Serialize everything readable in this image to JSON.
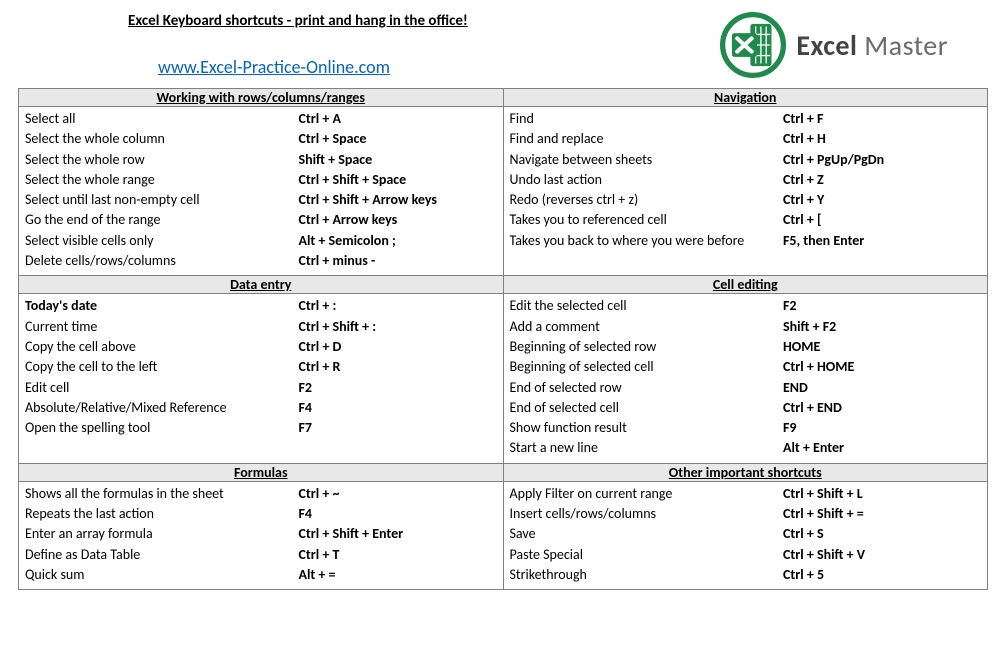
{
  "header": {
    "title": "Excel Keyboard shortcuts - print and hang in the office!",
    "site_link": "www.Excel-Practice-Online.com",
    "logo_text_bold": "Excel",
    "logo_text_light": " Master"
  },
  "colors": {
    "logo_green": "#1f8a4c",
    "link": "#0563c1",
    "header_bg": "#e8e8e8",
    "border": "#808080"
  },
  "sections": {
    "rows_cols": {
      "title": "Working with rows/columns/ranges",
      "items": [
        {
          "desc": "Select all",
          "key": "Ctrl + A"
        },
        {
          "desc": "Select the whole column",
          "key": "Ctrl + Space"
        },
        {
          "desc": "Select the whole row",
          "key": "Shift + Space"
        },
        {
          "desc": "Select the whole range",
          "key": "Ctrl + Shift + Space"
        },
        {
          "desc": "Select until last non-empty cell",
          "key": "Ctrl + Shift + Arrow keys"
        },
        {
          "desc": "Go the end of the range",
          "key": "Ctrl + Arrow keys"
        },
        {
          "desc": "Select visible cells only",
          "key": "Alt + Semicolon ;"
        },
        {
          "desc": "Delete cells/rows/columns",
          "key": "Ctrl + minus -"
        }
      ]
    },
    "navigation": {
      "title": "Navigation",
      "items": [
        {
          "desc": "Find",
          "key": "Ctrl + F"
        },
        {
          "desc": "Find and replace",
          "key": "Ctrl + H"
        },
        {
          "desc": "Navigate between sheets",
          "key": "Ctrl + PgUp/PgDn"
        },
        {
          "desc": "Undo last action",
          "key": "Ctrl + Z"
        },
        {
          "desc": "Redo (reverses ctrl + z)",
          "key": "Ctrl + Y"
        },
        {
          "desc": "Takes you to referenced cell",
          "key": "Ctrl + ["
        },
        {
          "desc": "Takes you back to where you were before",
          "key": "F5, then Enter"
        }
      ]
    },
    "data_entry": {
      "title": "Data entry",
      "items": [
        {
          "desc": "Today's date",
          "key": "Ctrl + :",
          "bold": true
        },
        {
          "desc": "Current time",
          "key": "Ctrl + Shift + :"
        },
        {
          "desc": "Copy the cell above",
          "key": "Ctrl + D"
        },
        {
          "desc": "Copy the cell to the left",
          "key": "Ctrl + R"
        },
        {
          "desc": "Edit cell",
          "key": "F2"
        },
        {
          "desc": "Absolute/Relative/Mixed Reference",
          "key": "F4"
        },
        {
          "desc": "Open the spelling tool",
          "key": "F7"
        }
      ]
    },
    "cell_editing": {
      "title": "Cell editing",
      "items": [
        {
          "desc": "Edit the selected cell",
          "key": "F2"
        },
        {
          "desc": "Add a comment",
          "key": "Shift + F2"
        },
        {
          "desc": "Beginning of selected row",
          "key": "HOME"
        },
        {
          "desc": "Beginning of selected cell",
          "key": "Ctrl + HOME"
        },
        {
          "desc": "End of selected row",
          "key": "END"
        },
        {
          "desc": "End of selected cell",
          "key": "Ctrl + END"
        },
        {
          "desc": "Show function result",
          "key": "F9"
        },
        {
          "desc": "Start a new line",
          "key": "Alt + Enter"
        }
      ]
    },
    "formulas": {
      "title": "Formulas",
      "items": [
        {
          "desc": "Shows all the formulas in the sheet",
          "key": "Ctrl + ~"
        },
        {
          "desc": "Repeats the last action",
          "key": "F4"
        },
        {
          "desc": "Enter an array formula",
          "key": "Ctrl + Shift + Enter"
        },
        {
          "desc": "Define as Data Table",
          "key": "Ctrl + T"
        },
        {
          "desc": "Quick sum",
          "key": "Alt + ="
        }
      ]
    },
    "other": {
      "title": "Other important shortcuts",
      "items": [
        {
          "desc": "Apply Filter on current range",
          "key": "Ctrl + Shift + L"
        },
        {
          "desc": "Insert cells/rows/columns",
          "key": "Ctrl + Shift + ="
        },
        {
          "desc": "Save",
          "key": "Ctrl + S"
        },
        {
          "desc": "Paste Special",
          "key": "Ctrl + Shift + V"
        },
        {
          "desc": "Strikethrough",
          "key": "Ctrl + 5"
        }
      ]
    }
  }
}
